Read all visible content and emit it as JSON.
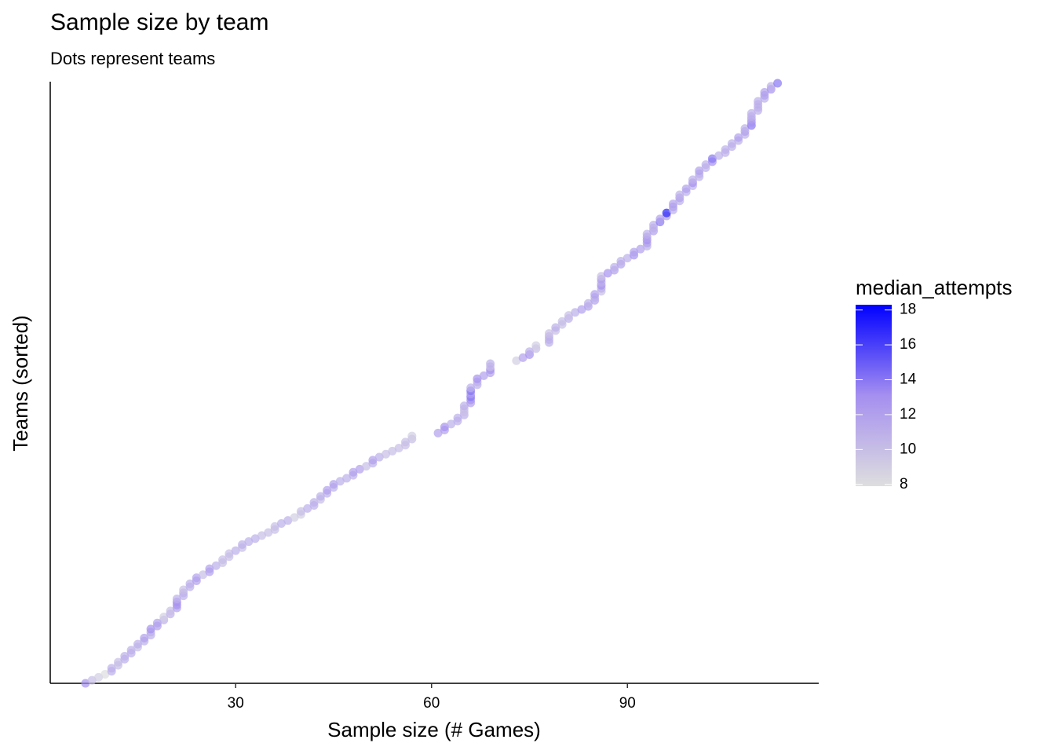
{
  "chart_data": {
    "type": "scatter",
    "title": "Sample size by team",
    "subtitle": "Dots represent teams",
    "x_label": "Sample size (# Games)",
    "y_label": "Teams (sorted)",
    "legend_title": "median_attempts",
    "xlim": [
      1.6,
      119.3
    ],
    "xticks": [
      30,
      60,
      90
    ],
    "color_lim": [
      7.9,
      18.3
    ],
    "colorbar_ticks": [
      8,
      10,
      12,
      14,
      16,
      18
    ],
    "color_scale": [
      "#dedede",
      "#a58ff0",
      "#0000ff"
    ],
    "values": [
      7,
      8,
      9,
      10,
      11,
      11,
      12,
      12,
      13,
      13,
      14,
      14,
      15,
      15,
      16,
      16,
      17,
      17,
      17,
      18,
      18,
      19,
      19,
      20,
      20,
      21,
      21,
      21,
      21,
      22,
      22,
      22,
      23,
      23,
      24,
      24,
      25,
      26,
      26,
      27,
      28,
      28,
      29,
      29,
      30,
      31,
      31,
      32,
      33,
      34,
      35,
      36,
      36,
      37,
      38,
      39,
      40,
      40,
      41,
      42,
      42,
      43,
      43,
      44,
      44,
      45,
      45,
      46,
      47,
      48,
      48,
      49,
      50,
      51,
      51,
      52,
      53,
      54,
      55,
      56,
      56,
      57,
      57,
      61,
      62,
      62,
      63,
      64,
      64,
      65,
      65,
      65,
      65,
      66,
      66,
      66,
      66,
      66,
      66,
      67,
      67,
      67,
      68,
      69,
      69,
      69,
      69,
      73,
      74,
      75,
      75,
      76,
      76,
      78,
      78,
      78,
      78,
      79,
      79,
      80,
      80,
      81,
      81,
      82,
      83,
      84,
      84,
      85,
      85,
      85,
      86,
      86,
      86,
      86,
      86,
      86,
      87,
      88,
      88,
      89,
      89,
      90,
      91,
      91,
      92,
      93,
      93,
      93,
      93,
      93,
      94,
      94,
      94,
      95,
      95,
      96,
      96,
      97,
      97,
      97,
      98,
      98,
      98,
      99,
      99,
      100,
      100,
      100,
      101,
      101,
      101,
      102,
      102,
      103,
      103,
      104,
      105,
      105,
      106,
      106,
      107,
      107,
      108,
      108,
      108,
      109,
      109,
      109,
      109,
      109,
      110,
      110,
      110,
      110,
      111,
      111,
      111,
      112,
      112,
      113
    ],
    "color_values": [
      13,
      10,
      9,
      8,
      11,
      11,
      10,
      10,
      11,
      11,
      11,
      11,
      10,
      11,
      11,
      12,
      11,
      11,
      13,
      12,
      12,
      11,
      9,
      11,
      10,
      12,
      13,
      13,
      11,
      11,
      11,
      10,
      11,
      11,
      12,
      12,
      10,
      12,
      12,
      11,
      10,
      10,
      10,
      10,
      11,
      10,
      11,
      11,
      11,
      10,
      10,
      10,
      10,
      11,
      11,
      9,
      9,
      10,
      11,
      11,
      11,
      10,
      11,
      11,
      12,
      11,
      12,
      11,
      11,
      11,
      12,
      12,
      10,
      11,
      12,
      11,
      10,
      10,
      10,
      10,
      10,
      10,
      9,
      12,
      12,
      13,
      11,
      11,
      11,
      11,
      10,
      10,
      11,
      12,
      13,
      14,
      12,
      14,
      11,
      11,
      11,
      13,
      12,
      12,
      13,
      10,
      11,
      9,
      12,
      13,
      11,
      10,
      9,
      11,
      11,
      11,
      10,
      10,
      11,
      10,
      10,
      11,
      10,
      11,
      12,
      12,
      11,
      12,
      11,
      12,
      10,
      11,
      13,
      11,
      12,
      10,
      13,
      12,
      11,
      12,
      11,
      11,
      13,
      12,
      12,
      11,
      12,
      13,
      12,
      11,
      12,
      11,
      11,
      14,
      12,
      12,
      17,
      11,
      12,
      12,
      11,
      12,
      11,
      11,
      12,
      11,
      13,
      11,
      11,
      11,
      12,
      11,
      11,
      13,
      14,
      11,
      11,
      11,
      11,
      11,
      11,
      12,
      11,
      12,
      11,
      14,
      13,
      12,
      11,
      11,
      11,
      11,
      11,
      11,
      11,
      12,
      12,
      13,
      11,
      14
    ]
  }
}
